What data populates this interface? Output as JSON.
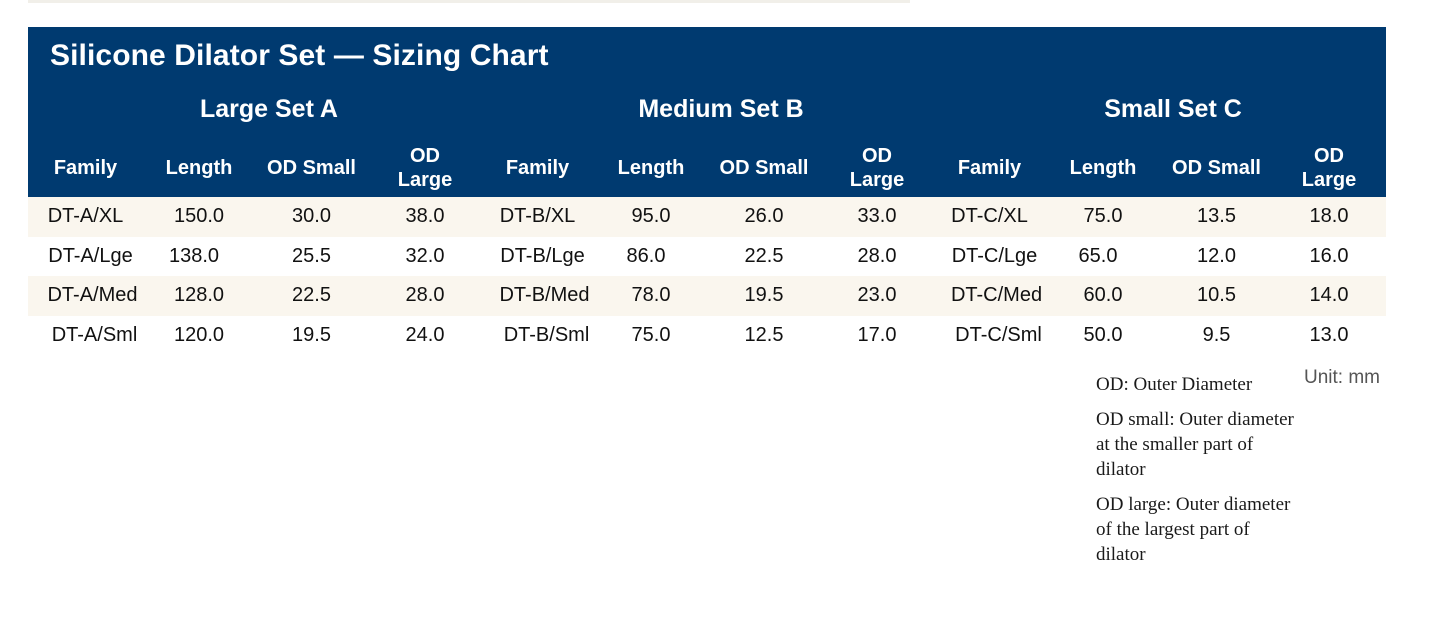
{
  "title": "Silicone Dilator Set — Sizing Chart",
  "groups": [
    {
      "title": "Large Set A",
      "headers": [
        "Family",
        "Length",
        "OD Small",
        "OD Large"
      ],
      "rows": [
        [
          "DT-A/XL",
          "150.0",
          "30.0",
          "38.0"
        ],
        [
          "DT-A/Lge",
          "138.0",
          "25.5",
          "32.0"
        ],
        [
          "DT-A/Med",
          "128.0",
          "22.5",
          "28.0"
        ],
        [
          "DT-A/Sml",
          "120.0",
          "19.5",
          "24.0"
        ]
      ]
    },
    {
      "title": "Medium Set B",
      "headers": [
        "Family",
        "Length",
        "OD Small",
        "OD Large"
      ],
      "rows": [
        [
          "DT-B/XL",
          "95.0",
          "26.0",
          "33.0"
        ],
        [
          "DT-B/Lge",
          "86.0",
          "22.5",
          "28.0"
        ],
        [
          "DT-B/Med",
          "78.0",
          "19.5",
          "23.0"
        ],
        [
          "DT-B/Sml",
          "75.0",
          "12.5",
          "17.0"
        ]
      ]
    },
    {
      "title": "Small Set C",
      "headers": [
        "Family",
        "Length",
        "OD Small",
        "OD Large"
      ],
      "rows": [
        [
          "DT-C/XL",
          "75.0",
          "13.5",
          "18.0"
        ],
        [
          "DT-C/Lge",
          "65.0",
          "12.0",
          "16.0"
        ],
        [
          "DT-C/Med",
          "60.0",
          "10.5",
          "14.0"
        ],
        [
          "DT-C/Sml",
          "50.0",
          "9.5",
          "13.0"
        ]
      ]
    }
  ],
  "unit_label": "Unit: mm",
  "notes": [
    "OD: Outer Diameter",
    "OD small: Outer diameter at the smaller part of dilator",
    "OD large: Outer diameter of the largest part of dilator"
  ],
  "colors": {
    "header_bg": "#003a70",
    "shaded_row": "#faf6ee"
  }
}
